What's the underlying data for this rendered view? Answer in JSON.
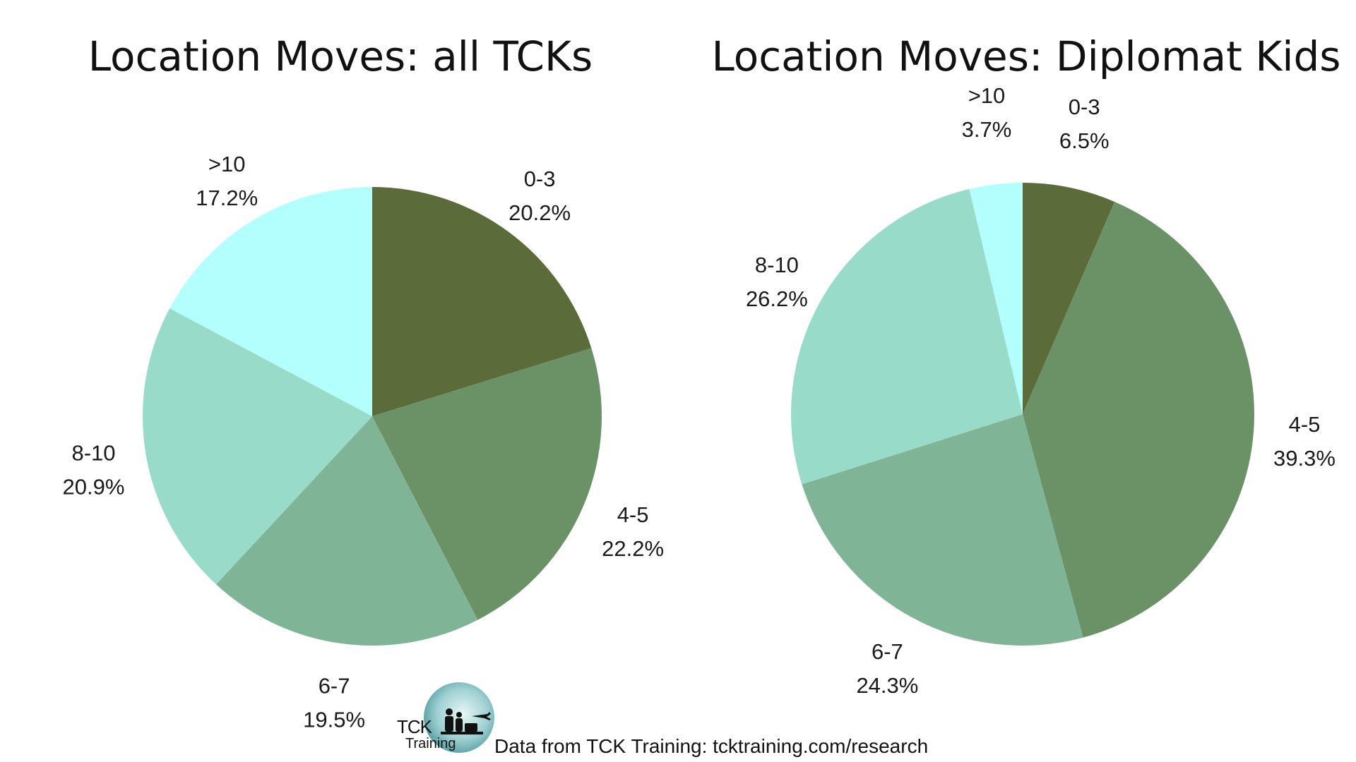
{
  "chart_data": [
    {
      "type": "pie",
      "title": "Location Moves: all TCKs",
      "start_angle_deg": 0,
      "direction": "clockwise",
      "slices": [
        {
          "label": "0-3",
          "value": 20.2,
          "value_text": "20.2%",
          "color": "#5c6b3a"
        },
        {
          "label": "4-5",
          "value": 22.2,
          "value_text": "22.2%",
          "color": "#6b9167"
        },
        {
          "label": "6-7",
          "value": 19.5,
          "value_text": "19.5%",
          "color": "#80b496"
        },
        {
          "label": "8-10",
          "value": 20.9,
          "value_text": "20.9%",
          "color": "#99dbc9"
        },
        {
          "label": ">10",
          "value": 17.2,
          "value_text": "17.2%",
          "color": "#b3fffe"
        }
      ]
    },
    {
      "type": "pie",
      "title": "Location Moves: Diplomat Kids",
      "start_angle_deg": 0,
      "direction": "clockwise",
      "slices": [
        {
          "label": "0-3",
          "value": 6.5,
          "value_text": "6.5%",
          "color": "#5c6b3a"
        },
        {
          "label": "4-5",
          "value": 39.3,
          "value_text": "39.3%",
          "color": "#6b9167"
        },
        {
          "label": "6-7",
          "value": 24.3,
          "value_text": "24.3%",
          "color": "#80b496"
        },
        {
          "label": "8-10",
          "value": 26.2,
          "value_text": "26.2%",
          "color": "#99dbc9"
        },
        {
          "label": ">10",
          "value": 3.7,
          "value_text": "3.7%",
          "color": "#b3fffe"
        }
      ]
    }
  ],
  "logo": {
    "brand_line1": "TCK",
    "brand_line2": "Training"
  },
  "footer": {
    "source": "Data from TCK Training: tcktraining.com/research"
  }
}
